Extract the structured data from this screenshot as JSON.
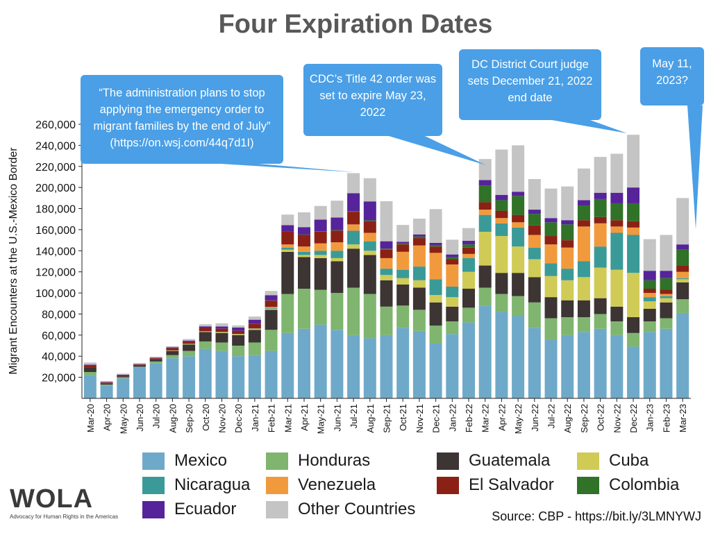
{
  "title": "Four Expiration Dates",
  "callouts": [
    {
      "id": "admin",
      "text": "“The administration plans to stop applying the emergency order to migrant families by the end of July” (https://on.wsj.com/44q7d1I)"
    },
    {
      "id": "cdc",
      "text": "CDC’s Title 42 order was set to expire May 23, 2022"
    },
    {
      "id": "dc",
      "text": "DC District Court judge sets December 21, 2022 end date"
    },
    {
      "id": "may",
      "text": "May 11, 2023?"
    }
  ],
  "source": "Source: CBP - https://bit.ly/3LMNYWJ",
  "logo": {
    "text": "WOLA",
    "subtitle": "Advocacy for Human Rights in the Americas"
  },
  "colors": {
    "Mexico": "#6fa9c9",
    "Honduras": "#7fb56e",
    "Guatemala": "#3d3434",
    "Cuba": "#cfcb56",
    "Nicaragua": "#3a9a98",
    "Venezuela": "#f19a3d",
    "El Salvador": "#8b2115",
    "Colombia": "#2f7228",
    "Ecuador": "#56239a",
    "Other Countries": "#c4c4c4",
    "callout": "#4a9fe6"
  },
  "chart_data": {
    "type": "bar",
    "stacked": true,
    "ylabel": "Migrant Encounters at the U.S.-Mexico Border",
    "ylim": [
      0,
      260000
    ],
    "yticks": [
      20000,
      40000,
      60000,
      80000,
      100000,
      120000,
      140000,
      160000,
      180000,
      200000,
      220000,
      240000,
      260000
    ],
    "ytick_labels": [
      "20,000",
      "40,000",
      "60,000",
      "80,000",
      "100,000",
      "120,000",
      "140,000",
      "160,000",
      "180,000",
      "200,000",
      "220,000",
      "240,000",
      "260,000"
    ],
    "grid": false,
    "legend_position": "bottom",
    "categories": [
      "Mar-20",
      "Apr-20",
      "May-20",
      "Jun-20",
      "Jul-20",
      "Aug-20",
      "Sep-20",
      "Oct-20",
      "Nov-20",
      "Dec-20",
      "Jan-21",
      "Feb-21",
      "Mar-21",
      "Apr-21",
      "May-21",
      "Jun-21",
      "Jul-21",
      "Aug-21",
      "Sep-21",
      "Oct-21",
      "Nov-21",
      "Dec-21",
      "Jan-22",
      "Feb-22",
      "Mar-22",
      "Apr-22",
      "May-22",
      "Jun-22",
      "Jul-22",
      "Aug-22",
      "Sep-22",
      "Oct-22",
      "Nov-22",
      "Dec-22",
      "Jan-23",
      "Feb-23",
      "Mar-23"
    ],
    "series": [
      {
        "name": "Mexico",
        "values": [
          22000,
          12000,
          19000,
          29000,
          33000,
          38000,
          40000,
          47000,
          45000,
          40000,
          41000,
          45000,
          62000,
          66000,
          70000,
          65000,
          60000,
          57000,
          60000,
          67000,
          64000,
          52000,
          61000,
          72000,
          88000,
          82000,
          78000,
          67000,
          56000,
          60000,
          63000,
          66000,
          60000,
          49000,
          63000,
          66000,
          81000
        ]
      },
      {
        "name": "Honduras",
        "values": [
          3000,
          1000,
          1000,
          1000,
          2000,
          3000,
          5000,
          7000,
          8000,
          10000,
          12000,
          20000,
          37000,
          38000,
          33000,
          35000,
          45000,
          42000,
          27000,
          21000,
          20000,
          17000,
          12000,
          14000,
          17000,
          17000,
          19000,
          24000,
          20000,
          17000,
          14000,
          14000,
          13000,
          13000,
          10000,
          10000,
          13000
        ]
      },
      {
        "name": "Guatemala",
        "values": [
          4000,
          1000,
          1000,
          1000,
          2000,
          4000,
          6000,
          9000,
          9000,
          10000,
          12000,
          19000,
          40000,
          30000,
          30000,
          30000,
          37000,
          37000,
          25000,
          20000,
          21000,
          22000,
          14000,
          18000,
          21000,
          20000,
          22000,
          24000,
          20000,
          16000,
          16000,
          15000,
          14000,
          15000,
          12000,
          15000,
          16000
        ]
      },
      {
        "name": "Cuba",
        "values": [
          0,
          0,
          0,
          0,
          0,
          500,
          500,
          500,
          500,
          500,
          800,
          1000,
          2000,
          2000,
          3000,
          3000,
          4000,
          4000,
          5000,
          6000,
          7000,
          7000,
          9000,
          16000,
          32000,
          35000,
          25000,
          17000,
          20000,
          19000,
          22000,
          29000,
          35000,
          42000,
          7000,
          4000,
          3000
        ]
      },
      {
        "name": "Nicaragua",
        "values": [
          0,
          0,
          0,
          0,
          0,
          0,
          300,
          300,
          300,
          300,
          400,
          700,
          2000,
          3000,
          4000,
          7000,
          13000,
          9000,
          6000,
          8000,
          13000,
          15000,
          10000,
          13000,
          16000,
          12000,
          18000,
          11000,
          12000,
          11000,
          15000,
          20000,
          35000,
          36000,
          4000,
          2000,
          1000
        ]
      },
      {
        "name": "Venezuela",
        "values": [
          0,
          0,
          0,
          0,
          0,
          0,
          0,
          0,
          300,
          300,
          300,
          1000,
          3000,
          5000,
          7000,
          8000,
          6000,
          8000,
          10000,
          17000,
          20000,
          25000,
          21000,
          4000,
          5000,
          5000,
          5000,
          12000,
          18000,
          20000,
          33000,
          22000,
          6000,
          7000,
          4000,
          2000,
          6000
        ]
      },
      {
        "name": "El Salvador",
        "values": [
          2000,
          1000,
          1000,
          1000,
          1000,
          2000,
          2000,
          3000,
          3000,
          3000,
          4000,
          6000,
          12000,
          11000,
          11000,
          11000,
          12000,
          11000,
          8000,
          7000,
          7000,
          6000,
          5000,
          6000,
          7000,
          7000,
          7000,
          9000,
          8000,
          7000,
          6000,
          6000,
          6000,
          6000,
          4000,
          4000,
          6000
        ]
      },
      {
        "name": "Colombia",
        "values": [
          0,
          0,
          0,
          0,
          0,
          0,
          0,
          0,
          100,
          100,
          100,
          200,
          300,
          400,
          500,
          500,
          600,
          800,
          1000,
          1000,
          1500,
          1500,
          2000,
          3000,
          16000,
          10000,
          18000,
          11000,
          13000,
          15000,
          14000,
          17000,
          16000,
          17000,
          8000,
          11000,
          15000
        ]
      },
      {
        "name": "Ecuador",
        "values": [
          1000,
          500,
          500,
          500,
          500,
          1000,
          1000,
          1500,
          2000,
          3000,
          4000,
          5000,
          6000,
          7000,
          11000,
          12000,
          17000,
          18000,
          7000,
          1500,
          2000,
          2000,
          2500,
          3500,
          5000,
          5000,
          4000,
          4000,
          4000,
          4000,
          5000,
          6000,
          10000,
          15000,
          9000,
          7000,
          5000
        ]
      },
      {
        "name": "Other Countries",
        "values": [
          2000,
          1000,
          1000,
          1000,
          1000,
          1000,
          1500,
          2000,
          3000,
          2000,
          3000,
          4000,
          10000,
          14000,
          13000,
          16000,
          19000,
          22000,
          38000,
          16000,
          15000,
          32000,
          14000,
          12000,
          20000,
          43000,
          44000,
          29000,
          28000,
          32000,
          30000,
          34000,
          37000,
          50000,
          30000,
          34000,
          44000
        ]
      }
    ]
  }
}
